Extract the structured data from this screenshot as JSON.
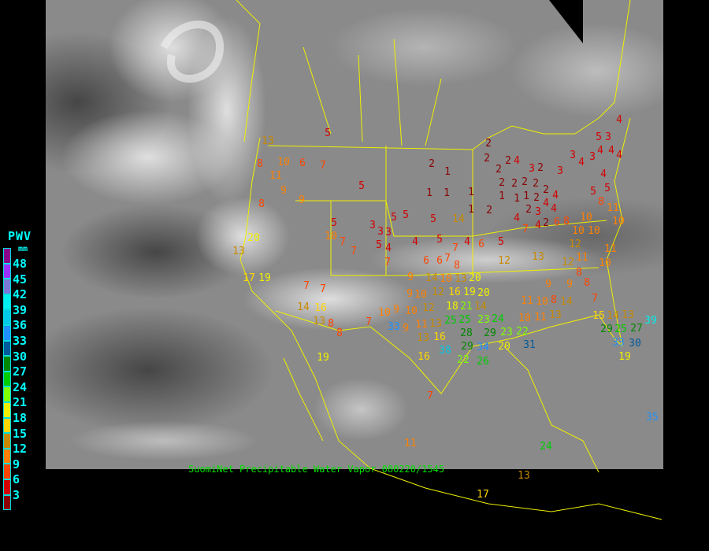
{
  "caption": "SuomiNet Precipitable Water Vapor 080220/1545",
  "legend": {
    "title": "PWV",
    "unit": "mm",
    "labels": [
      "48",
      "45",
      "42",
      "39",
      "36",
      "33",
      "30",
      "27",
      "24",
      "21",
      "18",
      "15",
      "12",
      "9",
      "6",
      "3"
    ],
    "colors": [
      "#8b008b",
      "#9b30ff",
      "#7b78d8",
      "#00f0f0",
      "#00c8e8",
      "#1e90ff",
      "#005a9c",
      "#008800",
      "#00cc00",
      "#80ff00",
      "#f0f000",
      "#ffd700",
      "#c88a00",
      "#ff8000",
      "#ff4500",
      "#d40000",
      "#8b0000"
    ]
  },
  "stations_pwv_mm": [
    5,
    13,
    10,
    8,
    11,
    6,
    7,
    9,
    9,
    8,
    5,
    2,
    1,
    1,
    1,
    5,
    5,
    5,
    5,
    10,
    3,
    3,
    3,
    5,
    4,
    7,
    7,
    7,
    4,
    5,
    20,
    13,
    17,
    19,
    1,
    2,
    2,
    2,
    2,
    2,
    2,
    2,
    3,
    2,
    4,
    2,
    1,
    1,
    1,
    2,
    2,
    2,
    4,
    4,
    3,
    4,
    2,
    6,
    4,
    8,
    2,
    1,
    14,
    4,
    7,
    3,
    3,
    4,
    3,
    4,
    4,
    4,
    4,
    5,
    3,
    4,
    5,
    5,
    8,
    11,
    10,
    10,
    10,
    10,
    4,
    6,
    5,
    6,
    6,
    7,
    8,
    7,
    13,
    10,
    9,
    9,
    10,
    12,
    12,
    14,
    16,
    18,
    19,
    20,
    21,
    14,
    20,
    12,
    13,
    12,
    11,
    11,
    12,
    10,
    8,
    8,
    9,
    9,
    11,
    10,
    8,
    7,
    10,
    11,
    13,
    14,
    15,
    14,
    13,
    9,
    10,
    11,
    13,
    16,
    9,
    13,
    25,
    28,
    25,
    29,
    23,
    24,
    23,
    29,
    20,
    22,
    31,
    34,
    26,
    38,
    22,
    25,
    27,
    33,
    30,
    19,
    29,
    39,
    35,
    13,
    17,
    7,
    11,
    19,
    16,
    16,
    14,
    13,
    8,
    8,
    7,
    10,
    7,
    7,
    33,
    24
  ]
}
